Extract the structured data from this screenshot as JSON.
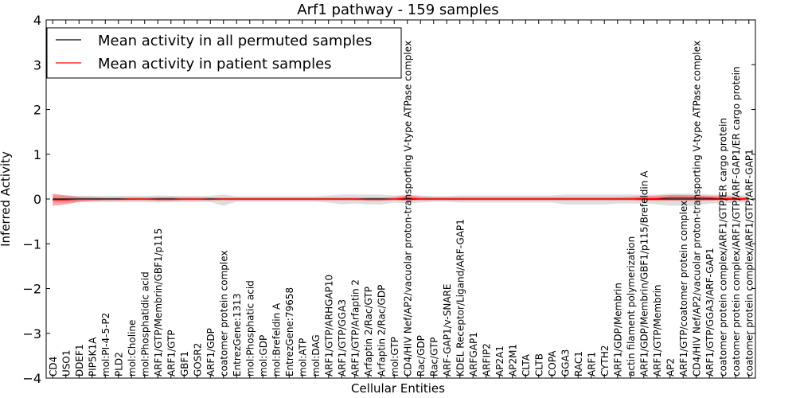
{
  "chart_data": {
    "type": "line",
    "title": "Arf1 pathway - 159 samples",
    "xlabel": "Cellular Entities",
    "ylabel": "Inferred Activity",
    "ylim": [
      -4,
      4
    ],
    "yticks": [
      -4,
      -3,
      -2,
      -1,
      0,
      1,
      2,
      3,
      4
    ],
    "legend_position": "top-left",
    "categories": [
      "CD4",
      "USO1",
      "DDEF1",
      "PIP5K1A",
      "mol:PI-4-5-P2",
      "PLD2",
      "mol:Choline",
      "mol:Phosphatidic acid",
      "ARF1/GTP/Membrin/GBF1/p115",
      "ARF1/GTP",
      "GBF1",
      "GOSR2",
      "ARF1/GDP",
      "coatomer protein complex",
      "EntrezGene:1313",
      "mol:Phosphatic acid",
      "mol:GDP",
      "mol:Brefeldin A",
      "EntrezGene:79658",
      "mol:ATP",
      "mol:DAG",
      "ARF1/GTP/ARHGAP10",
      "ARF1/GTP/GGA3",
      "ARF1/GTP/Arfaptin 2",
      "Arfaptin 2/Rac/GTP",
      "Arfaptin 2/Rac/GDP",
      "mol:GTP",
      "CD4/HIV Nef/AP2/vacuolar proton-transporting V-type ATPase complex",
      "Rac/GDP",
      "Rac/GTP",
      "ARF-GAP1/v-SNARE",
      "KDEL Receptor/Ligand/ARF-GAP1",
      "ARFGAP1",
      "ARFIP2",
      "AP2A1",
      "AP2M1",
      "CLTA",
      "CLTB",
      "COPA",
      "GGA3",
      "RAC1",
      "ARF1",
      "CYTH2",
      "ARF1/GDP/Membrin",
      "actin filament polymerization",
      "ARF1/GDP/Membrin/GBF1/p115/Brefeldin A",
      "ARF1/GTP/Membrin",
      "AP2",
      "ARF1/GTP/coatomer protein complex",
      "CD4/HIV Nef/AP2/vacuolar proton-transporting V-type ATPase complex",
      "ARF1/GTP/GGA3/ARF-GAP1",
      "coatomer protein complex/ARF1/GTP/ER cargo protein",
      "coatomer protein complex/ARF1/GTP/ARF-GAP1/ER cargo protein",
      "coatomer protein complex/ARF1/GTP/ARF-GAP1"
    ],
    "series": [
      {
        "name": "Mean activity in all permuted samples",
        "color": "#000000",
        "values": [
          0,
          0,
          0,
          0,
          0,
          0,
          0,
          0,
          0,
          0,
          0,
          0,
          0,
          0,
          0,
          0,
          0,
          0,
          0,
          0,
          0,
          0,
          0,
          0,
          0,
          0,
          0,
          0,
          0,
          0,
          0,
          0,
          0,
          0,
          0,
          0,
          0,
          0,
          0,
          0,
          0,
          0,
          0,
          0,
          0,
          0,
          0,
          0,
          0,
          0,
          0,
          0,
          0,
          0
        ],
        "band_low": [
          -0.08,
          -0.08,
          -0.07,
          -0.07,
          -0.07,
          -0.07,
          -0.07,
          -0.07,
          -0.08,
          -0.07,
          -0.07,
          -0.07,
          -0.07,
          -0.15,
          -0.06,
          -0.06,
          -0.06,
          -0.06,
          -0.06,
          -0.06,
          -0.06,
          -0.08,
          -0.12,
          -0.1,
          -0.12,
          -0.12,
          -0.08,
          -0.1,
          -0.08,
          -0.06,
          -0.06,
          -0.08,
          -0.08,
          -0.08,
          -0.08,
          -0.08,
          -0.08,
          -0.08,
          -0.08,
          -0.12,
          -0.12,
          -0.12,
          -0.12,
          -0.1,
          -0.1,
          -0.1,
          -0.12,
          -0.15,
          -0.15,
          -0.15,
          -0.1,
          -0.1,
          -0.08,
          -0.08
        ],
        "band_high": [
          0.08,
          0.08,
          0.07,
          0.07,
          0.07,
          0.07,
          0.07,
          0.07,
          0.08,
          0.07,
          0.07,
          0.07,
          0.07,
          0.1,
          0.06,
          0.06,
          0.06,
          0.06,
          0.06,
          0.06,
          0.06,
          0.08,
          0.1,
          0.1,
          0.1,
          0.1,
          0.08,
          0.1,
          0.08,
          0.06,
          0.06,
          0.08,
          0.08,
          0.08,
          0.08,
          0.08,
          0.08,
          0.08,
          0.08,
          0.1,
          0.1,
          0.1,
          0.1,
          0.1,
          0.1,
          0.1,
          0.1,
          0.12,
          0.12,
          0.12,
          0.1,
          0.1,
          0.08,
          0.08
        ]
      },
      {
        "name": "Mean activity in patient samples",
        "color": "#ff0000",
        "values": [
          -0.02,
          -0.02,
          -0.01,
          -0.01,
          -0.01,
          -0.01,
          0,
          0,
          -0.01,
          -0.01,
          0,
          0,
          -0.01,
          0,
          0,
          0,
          0,
          0,
          0,
          0,
          0,
          0,
          0,
          0,
          -0.01,
          -0.01,
          0,
          0.02,
          0,
          0,
          0,
          0,
          0,
          0,
          0,
          0,
          0,
          0,
          0,
          0,
          0,
          0,
          0,
          0,
          0,
          0.01,
          0.01,
          0.03,
          0.03,
          0.03,
          0.02,
          0.01,
          0.01,
          0
        ],
        "band_low": [
          -0.15,
          -0.12,
          -0.06,
          -0.04,
          -0.03,
          -0.03,
          -0.03,
          -0.03,
          -0.04,
          -0.04,
          -0.03,
          -0.03,
          -0.03,
          -0.03,
          -0.03,
          -0.03,
          -0.03,
          -0.03,
          -0.03,
          -0.03,
          -0.03,
          -0.03,
          -0.03,
          -0.03,
          -0.04,
          -0.04,
          -0.03,
          -0.04,
          -0.03,
          -0.03,
          -0.03,
          -0.03,
          -0.03,
          -0.03,
          -0.03,
          -0.03,
          -0.03,
          -0.03,
          -0.03,
          -0.03,
          -0.03,
          -0.03,
          -0.03,
          -0.03,
          -0.03,
          -0.04,
          -0.04,
          -0.04,
          -0.04,
          -0.04,
          -0.04,
          -0.03,
          -0.03,
          -0.03
        ],
        "band_high": [
          0.12,
          0.08,
          0.05,
          0.04,
          0.03,
          0.03,
          0.03,
          0.03,
          0.04,
          0.04,
          0.03,
          0.03,
          0.03,
          0.03,
          0.03,
          0.03,
          0.03,
          0.03,
          0.03,
          0.03,
          0.03,
          0.03,
          0.03,
          0.03,
          0.03,
          0.03,
          0.04,
          0.08,
          0.05,
          0.04,
          0.04,
          0.04,
          0.04,
          0.04,
          0.04,
          0.04,
          0.04,
          0.04,
          0.04,
          0.04,
          0.04,
          0.04,
          0.04,
          0.04,
          0.05,
          0.06,
          0.07,
          0.09,
          0.09,
          0.08,
          0.07,
          0.06,
          0.05,
          0.04
        ]
      }
    ]
  }
}
